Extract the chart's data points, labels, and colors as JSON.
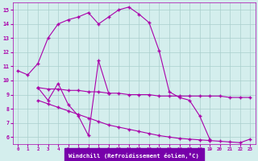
{
  "line1_x": [
    0,
    1,
    2,
    3,
    4,
    5,
    6,
    7,
    8,
    9,
    10,
    11,
    12,
    13,
    14,
    15,
    16,
    17,
    18,
    19
  ],
  "line1_y": [
    10.7,
    10.4,
    11.2,
    13.0,
    14.0,
    14.3,
    14.5,
    14.8,
    14.0,
    14.5,
    15.0,
    15.2,
    14.7,
    14.1,
    12.1,
    9.2,
    8.8,
    8.6,
    7.5,
    5.85
  ],
  "line2_x": [
    2,
    3,
    4,
    5,
    6,
    7,
    8,
    9
  ],
  "line2_y": [
    9.5,
    8.6,
    9.8,
    8.3,
    7.5,
    6.1,
    11.4,
    9.1
  ],
  "line3_x": [
    2,
    3,
    4,
    5,
    6,
    7,
    8,
    9,
    10,
    11,
    12,
    13,
    14,
    15,
    16,
    17,
    18,
    19,
    20,
    21,
    22,
    23
  ],
  "line3_y": [
    9.5,
    9.4,
    9.4,
    9.3,
    9.3,
    9.2,
    9.2,
    9.1,
    9.1,
    9.0,
    9.0,
    9.0,
    8.9,
    8.9,
    8.9,
    8.9,
    8.9,
    8.9,
    8.9,
    8.8,
    8.8,
    8.8
  ],
  "line4_x": [
    2,
    3,
    4,
    5,
    6,
    7,
    8,
    9,
    10,
    11,
    12,
    13,
    14,
    15,
    16,
    17,
    18,
    19,
    20,
    21,
    22,
    23
  ],
  "line4_y": [
    8.6,
    8.35,
    8.1,
    7.85,
    7.6,
    7.35,
    7.1,
    6.85,
    6.7,
    6.55,
    6.4,
    6.25,
    6.1,
    6.0,
    5.9,
    5.85,
    5.8,
    5.75,
    5.7,
    5.65,
    5.6,
    5.85
  ],
  "line_color": "#aa00aa",
  "bg_color": "#d4eeed",
  "grid_color": "#aacfcd",
  "xlabel": "Windchill (Refroidissement éolien,°C)",
  "xlabel_bg": "#7700aa",
  "xlabel_fg": "#ffffff",
  "xlim": [
    -0.5,
    23.5
  ],
  "ylim": [
    5.5,
    15.5
  ],
  "xticks": [
    0,
    1,
    2,
    3,
    4,
    5,
    6,
    7,
    8,
    9,
    10,
    11,
    12,
    13,
    14,
    15,
    16,
    17,
    18,
    19,
    20,
    21,
    22,
    23
  ],
  "yticks": [
    6,
    7,
    8,
    9,
    10,
    11,
    12,
    13,
    14,
    15
  ]
}
